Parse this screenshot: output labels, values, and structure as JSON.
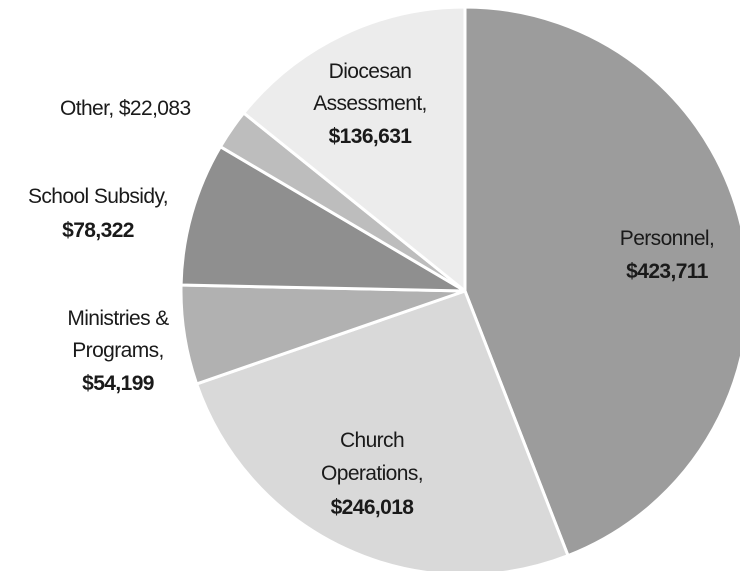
{
  "chart_data": {
    "type": "pie",
    "title": "",
    "slices": [
      {
        "category": "Personnel",
        "value": 423711,
        "value_label": "$423,711",
        "color": "#9c9c9c"
      },
      {
        "category": "Church Operations",
        "value": 246018,
        "value_label": "$246,018",
        "color": "#d9d9d9"
      },
      {
        "category": "Ministries & Programs",
        "value": 54199,
        "value_label": "$54,199",
        "color": "#b1b1b1"
      },
      {
        "category": "School Subsidy",
        "value": 78322,
        "value_label": "$78,322",
        "color": "#8f8f8f"
      },
      {
        "category": "Other",
        "value": 22083,
        "value_label": "$22,083",
        "color": "#bdbdbd"
      },
      {
        "category": "Diocesan Assessment",
        "value": 136631,
        "value_label": "$136,631",
        "color": "#ececec"
      }
    ],
    "start_angle": "12 o'clock",
    "direction": "clockwise",
    "legend": "none",
    "data_labels": "category and value on or beside each slice"
  },
  "labels": {
    "personnel": {
      "line1": "Personnel,",
      "value": "$423,711"
    },
    "church_operations": {
      "line1": "Church",
      "line2": "Operations,",
      "value": "$246,018"
    },
    "ministries": {
      "line1": "Ministries &",
      "line2": "Programs,",
      "value": "$54,199"
    },
    "school": {
      "line1": "School Subsidy,",
      "value": "$78,322"
    },
    "other": {
      "line1": "Other, $22,083"
    },
    "diocesan": {
      "line1": "Diocesan",
      "line2": "Assessment,",
      "value": "$136,631"
    }
  }
}
